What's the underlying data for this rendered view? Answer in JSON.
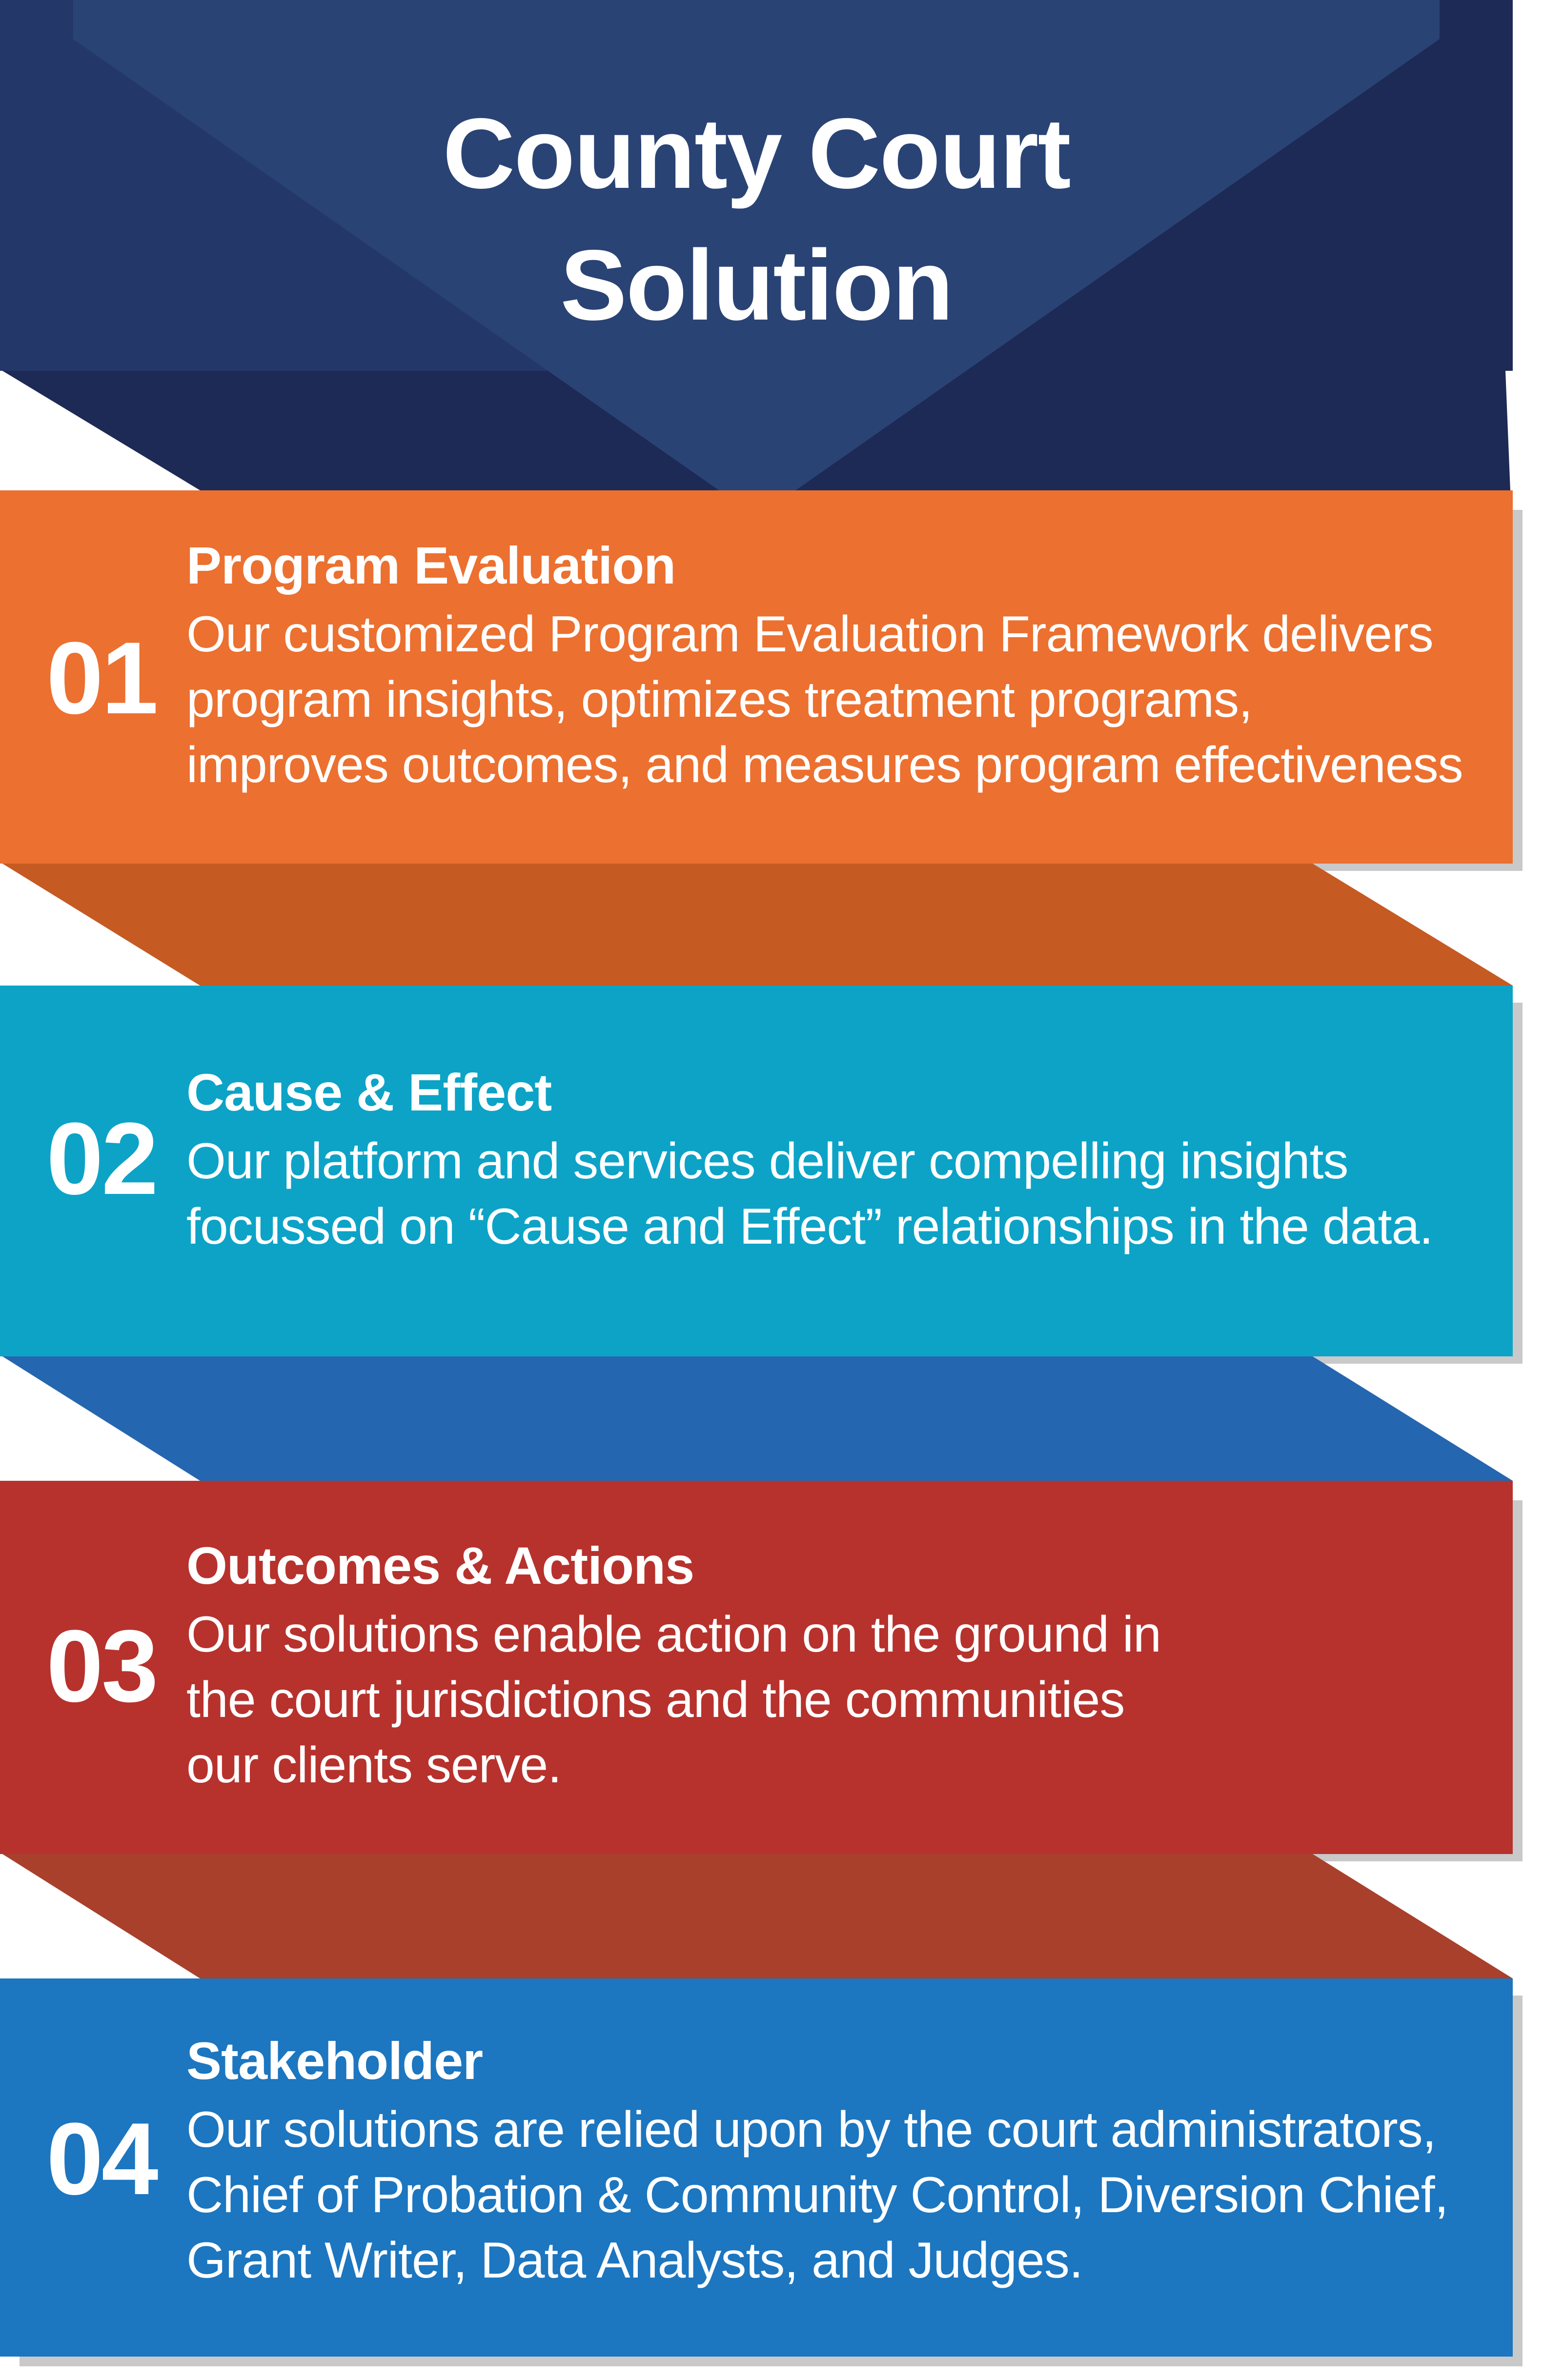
{
  "title_lines": [
    "County Court",
    "Solution"
  ],
  "colors": {
    "title_band_dark": "#1d2a55",
    "title_band_mid": "#243769",
    "title_chevron": "#2a4375",
    "step1": "#ec7030",
    "step1_fold": "#c65a23",
    "step2": "#0ca3c7",
    "step2_fold": "#2566b0",
    "step3": "#b7322d",
    "step3_fold": "#a8402c",
    "step4": "#1c76c0",
    "shadow": "#c9c9c9"
  },
  "steps": [
    {
      "number": "01",
      "heading": "Program Evaluation",
      "body_lines": [
        "Our customized Program Evaluation Framework delivers",
        "program insights, optimizes treatment programs,",
        "improves outcomes, and measures program effectiveness"
      ]
    },
    {
      "number": "02",
      "heading": "Cause & Effect",
      "body_lines": [
        "Our platform and services deliver compelling insights",
        "focussed on “Cause and Effect” relationships in the data."
      ]
    },
    {
      "number": "03",
      "heading": "Outcomes & Actions",
      "body_lines": [
        "Our solutions enable action on the ground in",
        "the court jurisdictions and the communities",
        "our clients serve."
      ]
    },
    {
      "number": "04",
      "heading": "Stakeholder",
      "body_lines": [
        "Our solutions are relied upon by the court administrators,",
        "Chief of Probation & Community Control, Diversion Chief,",
        "Grant Writer, Data Analysts, and Judges."
      ]
    }
  ]
}
